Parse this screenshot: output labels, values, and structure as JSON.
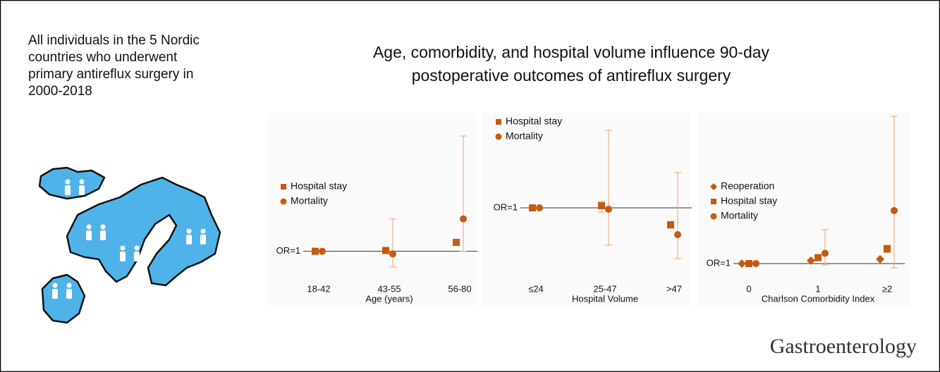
{
  "intro": [
    "All individuals in the 5 Nordic",
    "countries who underwent",
    "primary antireflux surgery in",
    "2000-2018"
  ],
  "title": [
    "Age, comorbidity, and hospital volume influence 90-day",
    "postoperative outcomes of antireflux surgery"
  ],
  "footer": "Gastroenterology",
  "chart_data": [
    {
      "type": "dot",
      "xlabel": "Age (years)",
      "categories": [
        "18-42",
        "43-55",
        "56-80"
      ],
      "ref_label": "OR=1",
      "ref_value": 1,
      "ylim": [
        0,
        6
      ],
      "legend": "center left",
      "series": [
        {
          "name": "Hospital stay",
          "color": "#c55a11",
          "marker": "square",
          "values": [
            1,
            1.03,
            1.33
          ],
          "ci_low": [
            null,
            null,
            null
          ],
          "ci_high": [
            null,
            null,
            null
          ]
        },
        {
          "name": "Mortality",
          "color": "#c55a11",
          "marker": "circle",
          "values": [
            1,
            0.9,
            2.2
          ],
          "ci_low": [
            null,
            0.42,
            1.0
          ],
          "ci_high": [
            null,
            2.2,
            5.27
          ]
        }
      ]
    },
    {
      "type": "dot",
      "xlabel": "Hospital Volume",
      "categories": [
        "≤24",
        "25-47",
        ">47"
      ],
      "ref_label": "OR=1",
      "ref_value": 1,
      "ylim": [
        0,
        2.3
      ],
      "legend": "upper left",
      "series": [
        {
          "name": "Hospital stay",
          "color": "#c55a11",
          "marker": "square",
          "values": [
            1,
            1.03,
            0.76
          ],
          "ci_low": [
            null,
            0.94,
            0.71
          ],
          "ci_high": [
            null,
            1.09,
            0.8
          ]
        },
        {
          "name": "Mortality",
          "color": "#c55a11",
          "marker": "circle",
          "values": [
            1,
            0.98,
            0.62
          ],
          "ci_low": [
            null,
            0.47,
            0.28
          ],
          "ci_high": [
            null,
            2.1,
            1.5
          ]
        }
      ]
    },
    {
      "type": "dot",
      "xlabel": "Charlson Comorbidity Index",
      "categories": [
        "0",
        "1",
        "≥2"
      ],
      "ref_label": "OR=1",
      "ref_value": 1,
      "ylim": [
        0,
        11
      ],
      "legend": "center left",
      "series": [
        {
          "name": "Reoperation",
          "color": "#c55a11",
          "marker": "diamond",
          "values": [
            1,
            1.2,
            1.3
          ],
          "ci_low": [
            null,
            null,
            null
          ],
          "ci_high": [
            null,
            null,
            null
          ]
        },
        {
          "name": "Hospital stay",
          "color": "#c55a11",
          "marker": "square",
          "values": [
            1,
            1.4,
            2.0
          ],
          "ci_low": [
            null,
            1.25,
            1.75
          ],
          "ci_high": [
            null,
            1.55,
            2.25
          ]
        },
        {
          "name": "Mortality",
          "color": "#c55a11",
          "marker": "circle",
          "values": [
            1,
            1.7,
            4.6
          ],
          "ci_low": [
            null,
            0.9,
            0.7
          ],
          "ci_high": [
            null,
            3.3,
            11
          ]
        }
      ]
    }
  ]
}
